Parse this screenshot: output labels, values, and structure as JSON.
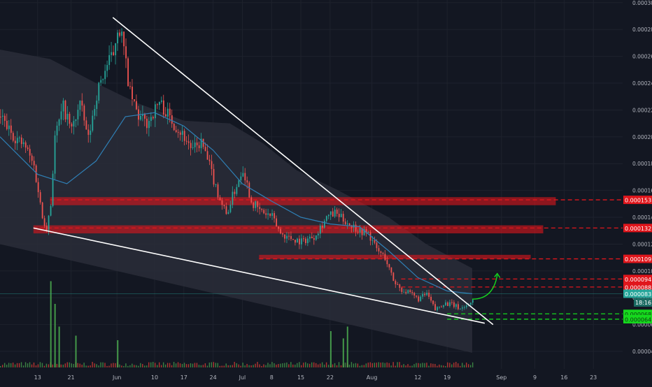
{
  "colors": {
    "background": "#131722",
    "grid": "#1e222d",
    "text": "#b2b5be",
    "candle_up": "#26a69a",
    "candle_down": "#ef5350",
    "moving_average": "#2f7fb5",
    "band": "#2a2d38",
    "trendline": "#ffffff",
    "resistance": "#e0161c",
    "support": "#16d91e",
    "volume_up": "#4caf50",
    "volume_down": "#f44336"
  },
  "chart_data": {
    "type": "candlestick",
    "y_axis": {
      "range": [
        2.7e-05,
        0.000302
      ],
      "ticks": [
        "0.000040",
        "0.000060",
        "0.000080",
        "0.000100",
        "0.000120",
        "0.000140",
        "0.000160",
        "0.000180",
        "0.000200",
        "0.000220",
        "0.000240",
        "0.000260",
        "0.000280",
        "0.000300"
      ]
    },
    "x_axis": {
      "range": [
        "2019-05-04",
        "2019-09-30"
      ],
      "ticks": [
        {
          "date": "2019-05-13",
          "label": "13"
        },
        {
          "date": "2019-05-21",
          "label": "21"
        },
        {
          "date": "2019-06-01",
          "label": "Jun"
        },
        {
          "date": "2019-06-10",
          "label": "10"
        },
        {
          "date": "2019-06-17",
          "label": "17"
        },
        {
          "date": "2019-06-24",
          "label": "24"
        },
        {
          "date": "2019-07-01",
          "label": "Jul"
        },
        {
          "date": "2019-07-08",
          "label": "8"
        },
        {
          "date": "2019-07-15",
          "label": "15"
        },
        {
          "date": "2019-07-22",
          "label": "22"
        },
        {
          "date": "2019-08-01",
          "label": "Aug"
        },
        {
          "date": "2019-08-12",
          "label": "12"
        },
        {
          "date": "2019-08-19",
          "label": "19"
        },
        {
          "date": "2019-09-01",
          "label": "Sep"
        },
        {
          "date": "2019-09-09",
          "label": "9"
        },
        {
          "date": "2019-09-16",
          "label": "16"
        },
        {
          "date": "2019-09-23",
          "label": "23"
        }
      ]
    },
    "price_path": [
      [
        "2019-05-04",
        0.000215
      ],
      [
        "2019-05-06",
        0.000205
      ],
      [
        "2019-05-08",
        0.000198
      ],
      [
        "2019-05-10",
        0.000192
      ],
      [
        "2019-05-12",
        0.000178
      ],
      [
        "2019-05-13",
        0.00016
      ],
      [
        "2019-05-14",
        0.00014
      ],
      [
        "2019-05-15",
        0.000133
      ],
      [
        "2019-05-16",
        0.00015
      ],
      [
        "2019-05-17",
        0.0002
      ],
      [
        "2019-05-19",
        0.000222
      ],
      [
        "2019-05-21",
        0.000205
      ],
      [
        "2019-05-23",
        0.000225
      ],
      [
        "2019-05-25",
        0.000198
      ],
      [
        "2019-05-27",
        0.000232
      ],
      [
        "2019-05-29",
        0.00025
      ],
      [
        "2019-05-31",
        0.000262
      ],
      [
        "2019-06-01",
        0.000283
      ],
      [
        "2019-06-02",
        0.000275
      ],
      [
        "2019-06-04",
        0.000232
      ],
      [
        "2019-06-06",
        0.000215
      ],
      [
        "2019-06-08",
        0.00021
      ],
      [
        "2019-06-11",
        0.000226
      ],
      [
        "2019-06-14",
        0.000212
      ],
      [
        "2019-06-17",
        0.0002
      ],
      [
        "2019-06-19",
        0.00019
      ],
      [
        "2019-06-21",
        0.000196
      ],
      [
        "2019-06-23",
        0.000178
      ],
      [
        "2019-06-25",
        0.000158
      ],
      [
        "2019-06-27",
        0.000142
      ],
      [
        "2019-06-29",
        0.00016
      ],
      [
        "2019-07-01",
        0.000177
      ],
      [
        "2019-07-03",
        0.000152
      ],
      [
        "2019-07-05",
        0.000145
      ],
      [
        "2019-07-08",
        0.00014
      ],
      [
        "2019-07-10",
        0.000128
      ],
      [
        "2019-07-12",
        0.000125
      ],
      [
        "2019-07-15",
        0.000122
      ],
      [
        "2019-07-18",
        0.000126
      ],
      [
        "2019-07-21",
        0.00014
      ],
      [
        "2019-07-23",
        0.000143
      ],
      [
        "2019-07-26",
        0.000136
      ],
      [
        "2019-07-29",
        0.00013
      ],
      [
        "2019-07-31",
        0.000128
      ],
      [
        "2019-08-02",
        0.000116
      ],
      [
        "2019-08-04",
        0.00011
      ],
      [
        "2019-08-06",
        9.3e-05
      ],
      [
        "2019-08-08",
        8.6e-05
      ],
      [
        "2019-08-10",
        8.3e-05
      ],
      [
        "2019-08-12",
        7.9e-05
      ],
      [
        "2019-08-14",
        8.3e-05
      ],
      [
        "2019-08-16",
        7.1e-05
      ],
      [
        "2019-08-18",
        7.6e-05
      ],
      [
        "2019-08-20",
        7.5e-05
      ],
      [
        "2019-08-22",
        7.2e-05
      ],
      [
        "2019-08-24",
        7.5e-05
      ],
      [
        "2019-08-25",
        7.9e-05
      ]
    ],
    "moving_average": [
      [
        "2019-05-04",
        0.0002
      ],
      [
        "2019-05-13",
        0.000172
      ],
      [
        "2019-05-20",
        0.000165
      ],
      [
        "2019-05-27",
        0.000182
      ],
      [
        "2019-06-03",
        0.000215
      ],
      [
        "2019-06-10",
        0.000218
      ],
      [
        "2019-06-17",
        0.000208
      ],
      [
        "2019-06-24",
        0.00019
      ],
      [
        "2019-07-01",
        0.000165
      ],
      [
        "2019-07-08",
        0.000152
      ],
      [
        "2019-07-15",
        0.00014
      ],
      [
        "2019-07-22",
        0.000135
      ],
      [
        "2019-07-29",
        0.000133
      ],
      [
        "2019-08-05",
        0.000115
      ],
      [
        "2019-08-12",
        9.5e-05
      ],
      [
        "2019-08-19",
        8.5e-05
      ],
      [
        "2019-08-25",
        8.3e-05
      ]
    ],
    "band": {
      "upper": [
        [
          "2019-05-04",
          0.000265
        ],
        [
          "2019-05-16",
          0.000258
        ],
        [
          "2019-05-27",
          0.00024
        ],
        [
          "2019-06-06",
          0.000225
        ],
        [
          "2019-06-17",
          0.000212
        ],
        [
          "2019-06-28",
          0.00021
        ],
        [
          "2019-07-06",
          0.000195
        ],
        [
          "2019-07-14",
          0.000175
        ],
        [
          "2019-07-24",
          0.00016
        ],
        [
          "2019-08-05",
          0.00014
        ],
        [
          "2019-08-14",
          0.00012
        ],
        [
          "2019-08-25",
          0.000102
        ]
      ],
      "lower": [
        [
          "2019-05-04",
          0.00012
        ],
        [
          "2019-08-25",
          3.9e-05
        ]
      ]
    },
    "trendlines": [
      {
        "from": [
          "2019-05-31",
          0.000289
        ],
        "to": [
          "2019-08-30",
          6e-05
        ]
      },
      {
        "from": [
          "2019-05-12",
          0.000132
        ],
        "to": [
          "2019-08-28",
          6.1e-05
        ]
      }
    ],
    "resistance_zones": [
      {
        "from": "2019-05-16",
        "to": "2019-09-14",
        "low": 0.000149,
        "high": 0.000155
      },
      {
        "from": "2019-05-12",
        "to": "2019-09-11",
        "low": 0.000128,
        "high": 0.000134
      },
      {
        "from": "2019-07-05",
        "to": "2019-09-08",
        "low": 0.000109,
        "high": 0.000112
      }
    ],
    "resistance_levels": [
      {
        "value": 0.000153,
        "label": "0.000153",
        "from": "2019-05-16"
      },
      {
        "value": 0.000132,
        "label": "0.000132",
        "from": "2019-05-12"
      },
      {
        "value": 0.000109,
        "label": "0.000109",
        "from": "2019-07-05"
      },
      {
        "value": 9.4e-05,
        "label": "0.000094",
        "from": "2019-08-08"
      },
      {
        "value": 8.8e-05,
        "label": "0.000088",
        "from": "2019-08-08"
      }
    ],
    "support_levels": [
      {
        "value": 6.8e-05,
        "label": "0.000068",
        "from": "2019-08-19"
      },
      {
        "value": 6.4e-05,
        "label": "0.000064",
        "from": "2019-08-19"
      }
    ],
    "last_price": {
      "value": 8.3e-05,
      "label": "0.000083",
      "countdown": "18:16"
    },
    "projection_arrow": [
      [
        "2019-08-25",
        7.9e-05
      ],
      [
        "2019-08-28",
        8.4e-05
      ],
      [
        "2019-08-31",
        9.7e-05
      ]
    ],
    "volume_spikes": [
      {
        "date": "2019-05-16",
        "rel": 0.95
      },
      {
        "date": "2019-05-17",
        "rel": 0.7
      },
      {
        "date": "2019-05-18",
        "rel": 0.45
      },
      {
        "date": "2019-05-22",
        "rel": 0.35
      },
      {
        "date": "2019-06-01",
        "rel": 0.3
      },
      {
        "date": "2019-07-22",
        "rel": 0.4
      },
      {
        "date": "2019-07-25",
        "rel": 0.32
      },
      {
        "date": "2019-07-26",
        "rel": 0.45
      }
    ]
  }
}
